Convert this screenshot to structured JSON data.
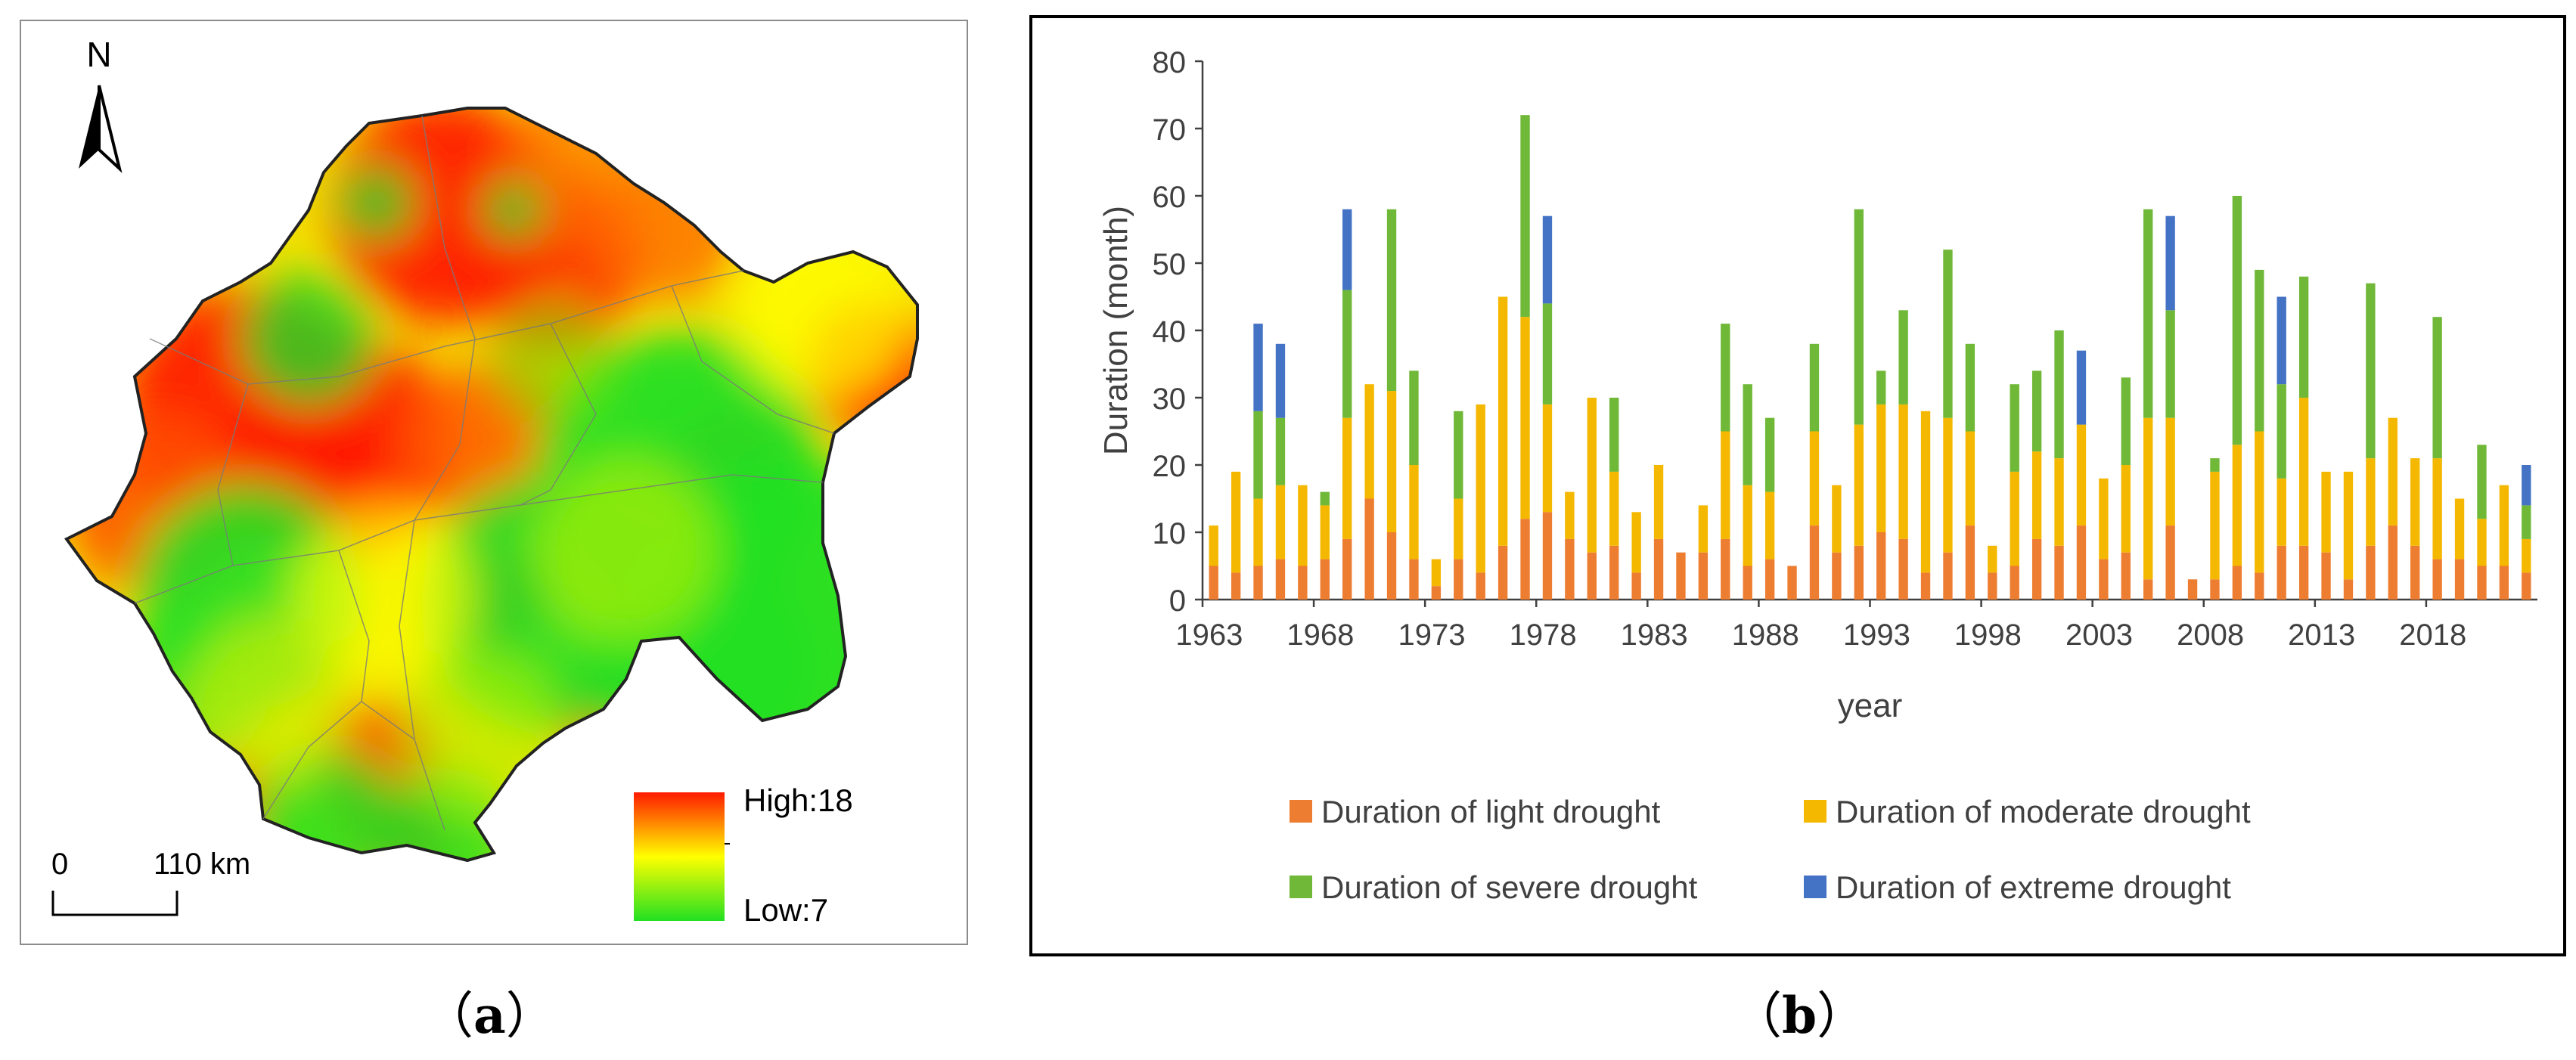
{
  "captions": {
    "a": "a",
    "b": "b"
  },
  "map": {
    "north_label": "N",
    "scale_start": "0",
    "scale_end": "110 km",
    "legend_high": "High:18",
    "legend_low": "Low:7",
    "legend_high_value": 18,
    "legend_low_value": 7,
    "colors": {
      "high": "#ff1a00",
      "mid": "#ffff00",
      "low": "#22e022"
    }
  },
  "chart_data": {
    "type": "bar",
    "stacked": true,
    "title": "",
    "xlabel": "year",
    "ylabel": "Duration (month)",
    "ylim": [
      0,
      80
    ],
    "yticks": [
      0,
      10,
      20,
      30,
      40,
      50,
      60,
      70,
      80
    ],
    "xtick_labels": [
      "1963",
      "1968",
      "1973",
      "1978",
      "1983",
      "1988",
      "1993",
      "1998",
      "2003",
      "2008",
      "2013",
      "2018"
    ],
    "grid": false,
    "legend_position": "bottom",
    "categories": [
      1963,
      1964,
      1965,
      1966,
      1967,
      1968,
      1969,
      1970,
      1971,
      1972,
      1973,
      1974,
      1975,
      1976,
      1977,
      1978,
      1979,
      1980,
      1981,
      1982,
      1983,
      1984,
      1985,
      1986,
      1987,
      1988,
      1989,
      1990,
      1991,
      1992,
      1993,
      1994,
      1995,
      1996,
      1997,
      1998,
      1999,
      2000,
      2001,
      2002,
      2003,
      2004,
      2005,
      2006,
      2007,
      2008,
      2009,
      2010,
      2011,
      2012,
      2013,
      2014,
      2015,
      2016,
      2017,
      2018,
      2019,
      2020,
      2021,
      2022
    ],
    "series": [
      {
        "name": "Duration of light drought",
        "color": "#ed7d31",
        "values": [
          5,
          4,
          5,
          6,
          5,
          6,
          9,
          15,
          10,
          6,
          2,
          6,
          4,
          8,
          12,
          13,
          9,
          7,
          8,
          4,
          9,
          7,
          7,
          9,
          5,
          6,
          5,
          11,
          7,
          8,
          10,
          9,
          4,
          7,
          11,
          4,
          5,
          9,
          8,
          11,
          6,
          7,
          3,
          11,
          3,
          3,
          5,
          4,
          8,
          8,
          7,
          3,
          8,
          11,
          8,
          6,
          6,
          5,
          5,
          4
        ]
      },
      {
        "name": "Duration of moderate drought",
        "color": "#f5b800",
        "values": [
          6,
          15,
          10,
          11,
          12,
          8,
          18,
          17,
          21,
          14,
          4,
          9,
          25,
          37,
          30,
          16,
          7,
          23,
          11,
          9,
          11,
          0,
          7,
          16,
          12,
          10,
          0,
          14,
          10,
          18,
          19,
          20,
          24,
          20,
          14,
          4,
          14,
          13,
          13,
          15,
          12,
          13,
          24,
          16,
          0,
          16,
          18,
          21,
          10,
          22,
          12,
          16,
          13,
          16,
          13,
          15,
          9,
          7,
          12,
          5
        ]
      },
      {
        "name": "Duration of severe drought",
        "color": "#70b838",
        "values": [
          0,
          0,
          13,
          10,
          0,
          2,
          19,
          0,
          27,
          14,
          0,
          13,
          0,
          0,
          30,
          15,
          0,
          0,
          11,
          0,
          0,
          0,
          0,
          16,
          15,
          11,
          0,
          13,
          0,
          32,
          5,
          14,
          0,
          25,
          13,
          0,
          13,
          12,
          19,
          0,
          0,
          13,
          31,
          16,
          0,
          2,
          37,
          24,
          14,
          18,
          0,
          0,
          26,
          0,
          0,
          21,
          0,
          11,
          0,
          5
        ]
      },
      {
        "name": "Duration of extreme drought",
        "color": "#4472c4",
        "values": [
          0,
          0,
          13,
          11,
          0,
          0,
          12,
          0,
          0,
          0,
          0,
          0,
          0,
          0,
          0,
          13,
          0,
          0,
          0,
          0,
          0,
          0,
          0,
          0,
          0,
          0,
          0,
          0,
          0,
          0,
          0,
          0,
          0,
          0,
          0,
          0,
          0,
          0,
          0,
          11,
          0,
          0,
          0,
          14,
          0,
          0,
          0,
          0,
          13,
          0,
          0,
          0,
          0,
          0,
          0,
          0,
          0,
          0,
          0,
          6
        ]
      }
    ]
  }
}
